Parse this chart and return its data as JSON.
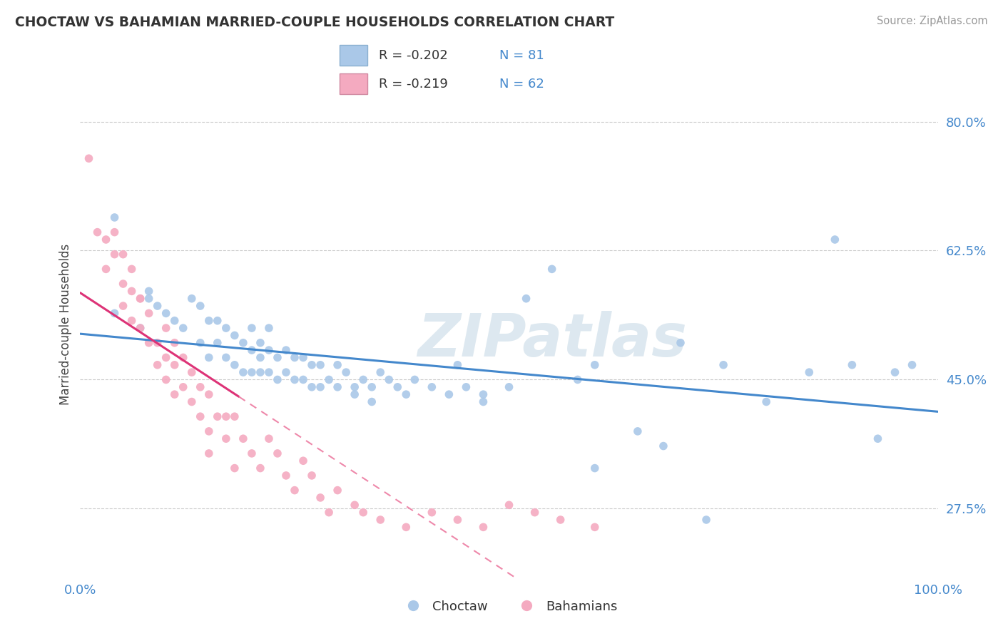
{
  "title": "CHOCTAW VS BAHAMIAN MARRIED-COUPLE HOUSEHOLDS CORRELATION CHART",
  "source": "Source: ZipAtlas.com",
  "ylabel": "Married-couple Households",
  "ytick_vals": [
    0.275,
    0.45,
    0.625,
    0.8
  ],
  "ytick_labels": [
    "27.5%",
    "45.0%",
    "62.5%",
    "80.0%"
  ],
  "xtick_vals": [
    0.0,
    1.0
  ],
  "xtick_labels": [
    "0.0%",
    "100.0%"
  ],
  "legend_blue_r": "R = -0.202",
  "legend_blue_n": "N = 81",
  "legend_pink_r": "R = -0.219",
  "legend_pink_n": "N = 62",
  "legend_label_blue": "Choctaw",
  "legend_label_pink": "Bahamians",
  "blue_color": "#aac8e8",
  "pink_color": "#f4aac0",
  "trend_blue_color": "#4488cc",
  "trend_pink_solid_color": "#dd3377",
  "trend_pink_dash_color": "#ee88aa",
  "watermark": "ZIPatlas",
  "watermark_color": "#ccdde8",
  "grid_color": "#cccccc",
  "axis_label_color": "#4488cc",
  "title_color": "#333333",
  "source_color": "#999999",
  "xlim": [
    0.0,
    1.0
  ],
  "ylim": [
    0.18,
    0.87
  ],
  "blue_x": [
    0.04,
    0.08,
    0.04,
    0.07,
    0.08,
    0.09,
    0.1,
    0.11,
    0.12,
    0.13,
    0.14,
    0.14,
    0.15,
    0.15,
    0.16,
    0.16,
    0.17,
    0.17,
    0.18,
    0.18,
    0.19,
    0.19,
    0.2,
    0.2,
    0.2,
    0.21,
    0.21,
    0.21,
    0.22,
    0.22,
    0.22,
    0.23,
    0.23,
    0.24,
    0.24,
    0.25,
    0.25,
    0.26,
    0.26,
    0.27,
    0.27,
    0.28,
    0.28,
    0.29,
    0.3,
    0.3,
    0.31,
    0.32,
    0.33,
    0.34,
    0.35,
    0.36,
    0.37,
    0.38,
    0.39,
    0.41,
    0.43,
    0.45,
    0.47,
    0.5,
    0.52,
    0.55,
    0.58,
    0.6,
    0.65,
    0.7,
    0.75,
    0.8,
    0.85,
    0.88,
    0.9,
    0.93,
    0.95,
    0.97,
    0.6,
    0.68,
    0.73,
    0.32,
    0.34,
    0.44,
    0.47
  ],
  "blue_y": [
    0.67,
    0.57,
    0.54,
    0.52,
    0.56,
    0.55,
    0.54,
    0.53,
    0.52,
    0.56,
    0.55,
    0.5,
    0.53,
    0.48,
    0.53,
    0.5,
    0.52,
    0.48,
    0.51,
    0.47,
    0.5,
    0.46,
    0.49,
    0.46,
    0.52,
    0.48,
    0.5,
    0.46,
    0.49,
    0.46,
    0.52,
    0.48,
    0.45,
    0.49,
    0.46,
    0.48,
    0.45,
    0.48,
    0.45,
    0.47,
    0.44,
    0.47,
    0.44,
    0.45,
    0.47,
    0.44,
    0.46,
    0.43,
    0.45,
    0.44,
    0.46,
    0.45,
    0.44,
    0.43,
    0.45,
    0.44,
    0.43,
    0.44,
    0.43,
    0.44,
    0.56,
    0.6,
    0.45,
    0.47,
    0.38,
    0.5,
    0.47,
    0.42,
    0.46,
    0.64,
    0.47,
    0.37,
    0.46,
    0.47,
    0.33,
    0.36,
    0.26,
    0.44,
    0.42,
    0.47,
    0.42
  ],
  "pink_x": [
    0.01,
    0.02,
    0.03,
    0.03,
    0.04,
    0.04,
    0.05,
    0.05,
    0.05,
    0.06,
    0.06,
    0.06,
    0.07,
    0.07,
    0.07,
    0.08,
    0.08,
    0.09,
    0.09,
    0.1,
    0.1,
    0.1,
    0.11,
    0.11,
    0.11,
    0.12,
    0.12,
    0.13,
    0.13,
    0.14,
    0.14,
    0.15,
    0.15,
    0.16,
    0.17,
    0.17,
    0.18,
    0.19,
    0.2,
    0.21,
    0.22,
    0.23,
    0.24,
    0.25,
    0.26,
    0.27,
    0.28,
    0.29,
    0.3,
    0.32,
    0.33,
    0.35,
    0.38,
    0.41,
    0.44,
    0.47,
    0.5,
    0.53,
    0.56,
    0.6,
    0.15,
    0.18
  ],
  "pink_y": [
    0.75,
    0.65,
    0.6,
    0.64,
    0.62,
    0.65,
    0.58,
    0.62,
    0.55,
    0.6,
    0.57,
    0.53,
    0.56,
    0.52,
    0.56,
    0.5,
    0.54,
    0.5,
    0.47,
    0.52,
    0.48,
    0.45,
    0.5,
    0.47,
    0.43,
    0.48,
    0.44,
    0.46,
    0.42,
    0.44,
    0.4,
    0.43,
    0.38,
    0.4,
    0.4,
    0.37,
    0.4,
    0.37,
    0.35,
    0.33,
    0.37,
    0.35,
    0.32,
    0.3,
    0.34,
    0.32,
    0.29,
    0.27,
    0.3,
    0.28,
    0.27,
    0.26,
    0.25,
    0.27,
    0.26,
    0.25,
    0.28,
    0.27,
    0.26,
    0.25,
    0.35,
    0.33
  ],
  "pink_trend_x_start": 0.0,
  "pink_trend_x_solid_end": 0.185,
  "pink_trend_x_dash_end": 0.7,
  "blue_trend_x_start": 0.0,
  "blue_trend_x_end": 1.0
}
